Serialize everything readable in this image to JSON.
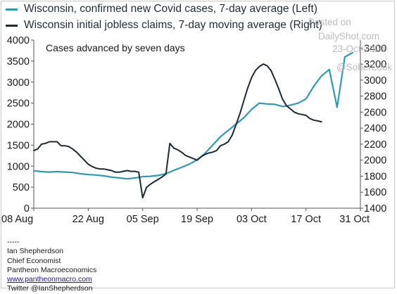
{
  "legend": [
    {
      "label": "Wisconsin, confirmed new Covid cases, 7-day average (Left)",
      "color": "#2e9bb6"
    },
    {
      "label": "Wisconsin initial jobless claims, 7-day moving average (Right)",
      "color": "#1c2a36"
    }
  ],
  "watermark": {
    "posted_on": "Posted on",
    "site": "DailyShot.com",
    "date": "23-Oct-2020",
    "handle": "@SoberLook"
  },
  "credits": {
    "separator": "-----",
    "name": "Ian Shepherdson",
    "title": "Chief Economist",
    "company": "Pantheon Macroeconomics",
    "link": "www.pantheonmacro.com",
    "twitter": "Twitter @IanShepherdson"
  },
  "chart_data": {
    "type": "line",
    "title": "",
    "annotation": "Cases advanced by seven days",
    "x_ticks": [
      "08 Aug",
      "22 Aug",
      "05 Sep",
      "19 Sep",
      "03 Oct",
      "17 Oct",
      "31 Oct"
    ],
    "x_tick_days": [
      0,
      14,
      28,
      42,
      56,
      70,
      84
    ],
    "left_axis": {
      "ticks": [
        0,
        500,
        1000,
        1500,
        2000,
        2500,
        3000,
        3500,
        4000
      ],
      "range": [
        0,
        4000
      ]
    },
    "right_axis": {
      "ticks": [
        1400,
        1600,
        1800,
        2000,
        2200,
        2400,
        2600,
        2800,
        3000,
        3200,
        3400
      ],
      "range": [
        1400,
        3500
      ]
    },
    "grid": false,
    "series": [
      {
        "name": "Wisconsin, confirmed new Covid cases, 7-day average (Left)",
        "axis": "left",
        "color": "#2e9bb6",
        "x": [
          0,
          2,
          4,
          6,
          8,
          10,
          12,
          14,
          16,
          18,
          20,
          22,
          24,
          26,
          28,
          30,
          32,
          34,
          36,
          38,
          40,
          42,
          44,
          46,
          48,
          50,
          52,
          54,
          56,
          58,
          60,
          62,
          64,
          66,
          68,
          70,
          72,
          74,
          76,
          78,
          80,
          82
        ],
        "y": [
          890,
          870,
          860,
          870,
          860,
          850,
          820,
          800,
          790,
          770,
          740,
          720,
          700,
          720,
          750,
          760,
          780,
          820,
          900,
          970,
          1050,
          1150,
          1300,
          1500,
          1700,
          1850,
          2000,
          2150,
          2350,
          2500,
          2480,
          2470,
          2420,
          2450,
          2500,
          2600,
          2900,
          3150,
          3300,
          2400,
          3600,
          3700
        ]
      },
      {
        "name": "Wisconsin initial jobless claims, 7-day moving average (Right)",
        "axis": "right",
        "color": "#1c2a36",
        "x": [
          0,
          1,
          2,
          3,
          4,
          5,
          6,
          7,
          8,
          9,
          10,
          11,
          12,
          13,
          14,
          15,
          16,
          17,
          18,
          19,
          20,
          21,
          22,
          23,
          24,
          25,
          26,
          27,
          28,
          29,
          30,
          31,
          32,
          33,
          34,
          35,
          36,
          37,
          38,
          39,
          40,
          41,
          42,
          43,
          44,
          45,
          46,
          47,
          48,
          49,
          50,
          51,
          52,
          53,
          54,
          55,
          56,
          57,
          58,
          59,
          60,
          61,
          62,
          63,
          64,
          65,
          66,
          67,
          68,
          69,
          70,
          71,
          72,
          73,
          74
        ],
        "y": [
          2120,
          2140,
          2200,
          2210,
          2230,
          2230,
          2230,
          2180,
          2180,
          2170,
          2140,
          2100,
          2050,
          2000,
          1950,
          1920,
          1900,
          1890,
          1890,
          1880,
          1870,
          1850,
          1850,
          1860,
          1870,
          1860,
          1860,
          1850,
          1530,
          1660,
          1700,
          1730,
          1760,
          1790,
          1830,
          2210,
          2150,
          2130,
          2100,
          2060,
          2040,
          2020,
          2000,
          2040,
          2070,
          2090,
          2100,
          2120,
          2180,
          2200,
          2230,
          2310,
          2440,
          2580,
          2740,
          2900,
          3030,
          3120,
          3170,
          3200,
          3180,
          3120,
          3010,
          2890,
          2760,
          2680,
          2640,
          2600,
          2580,
          2570,
          2560,
          2520,
          2500,
          2490,
          2480
        ]
      }
    ]
  }
}
